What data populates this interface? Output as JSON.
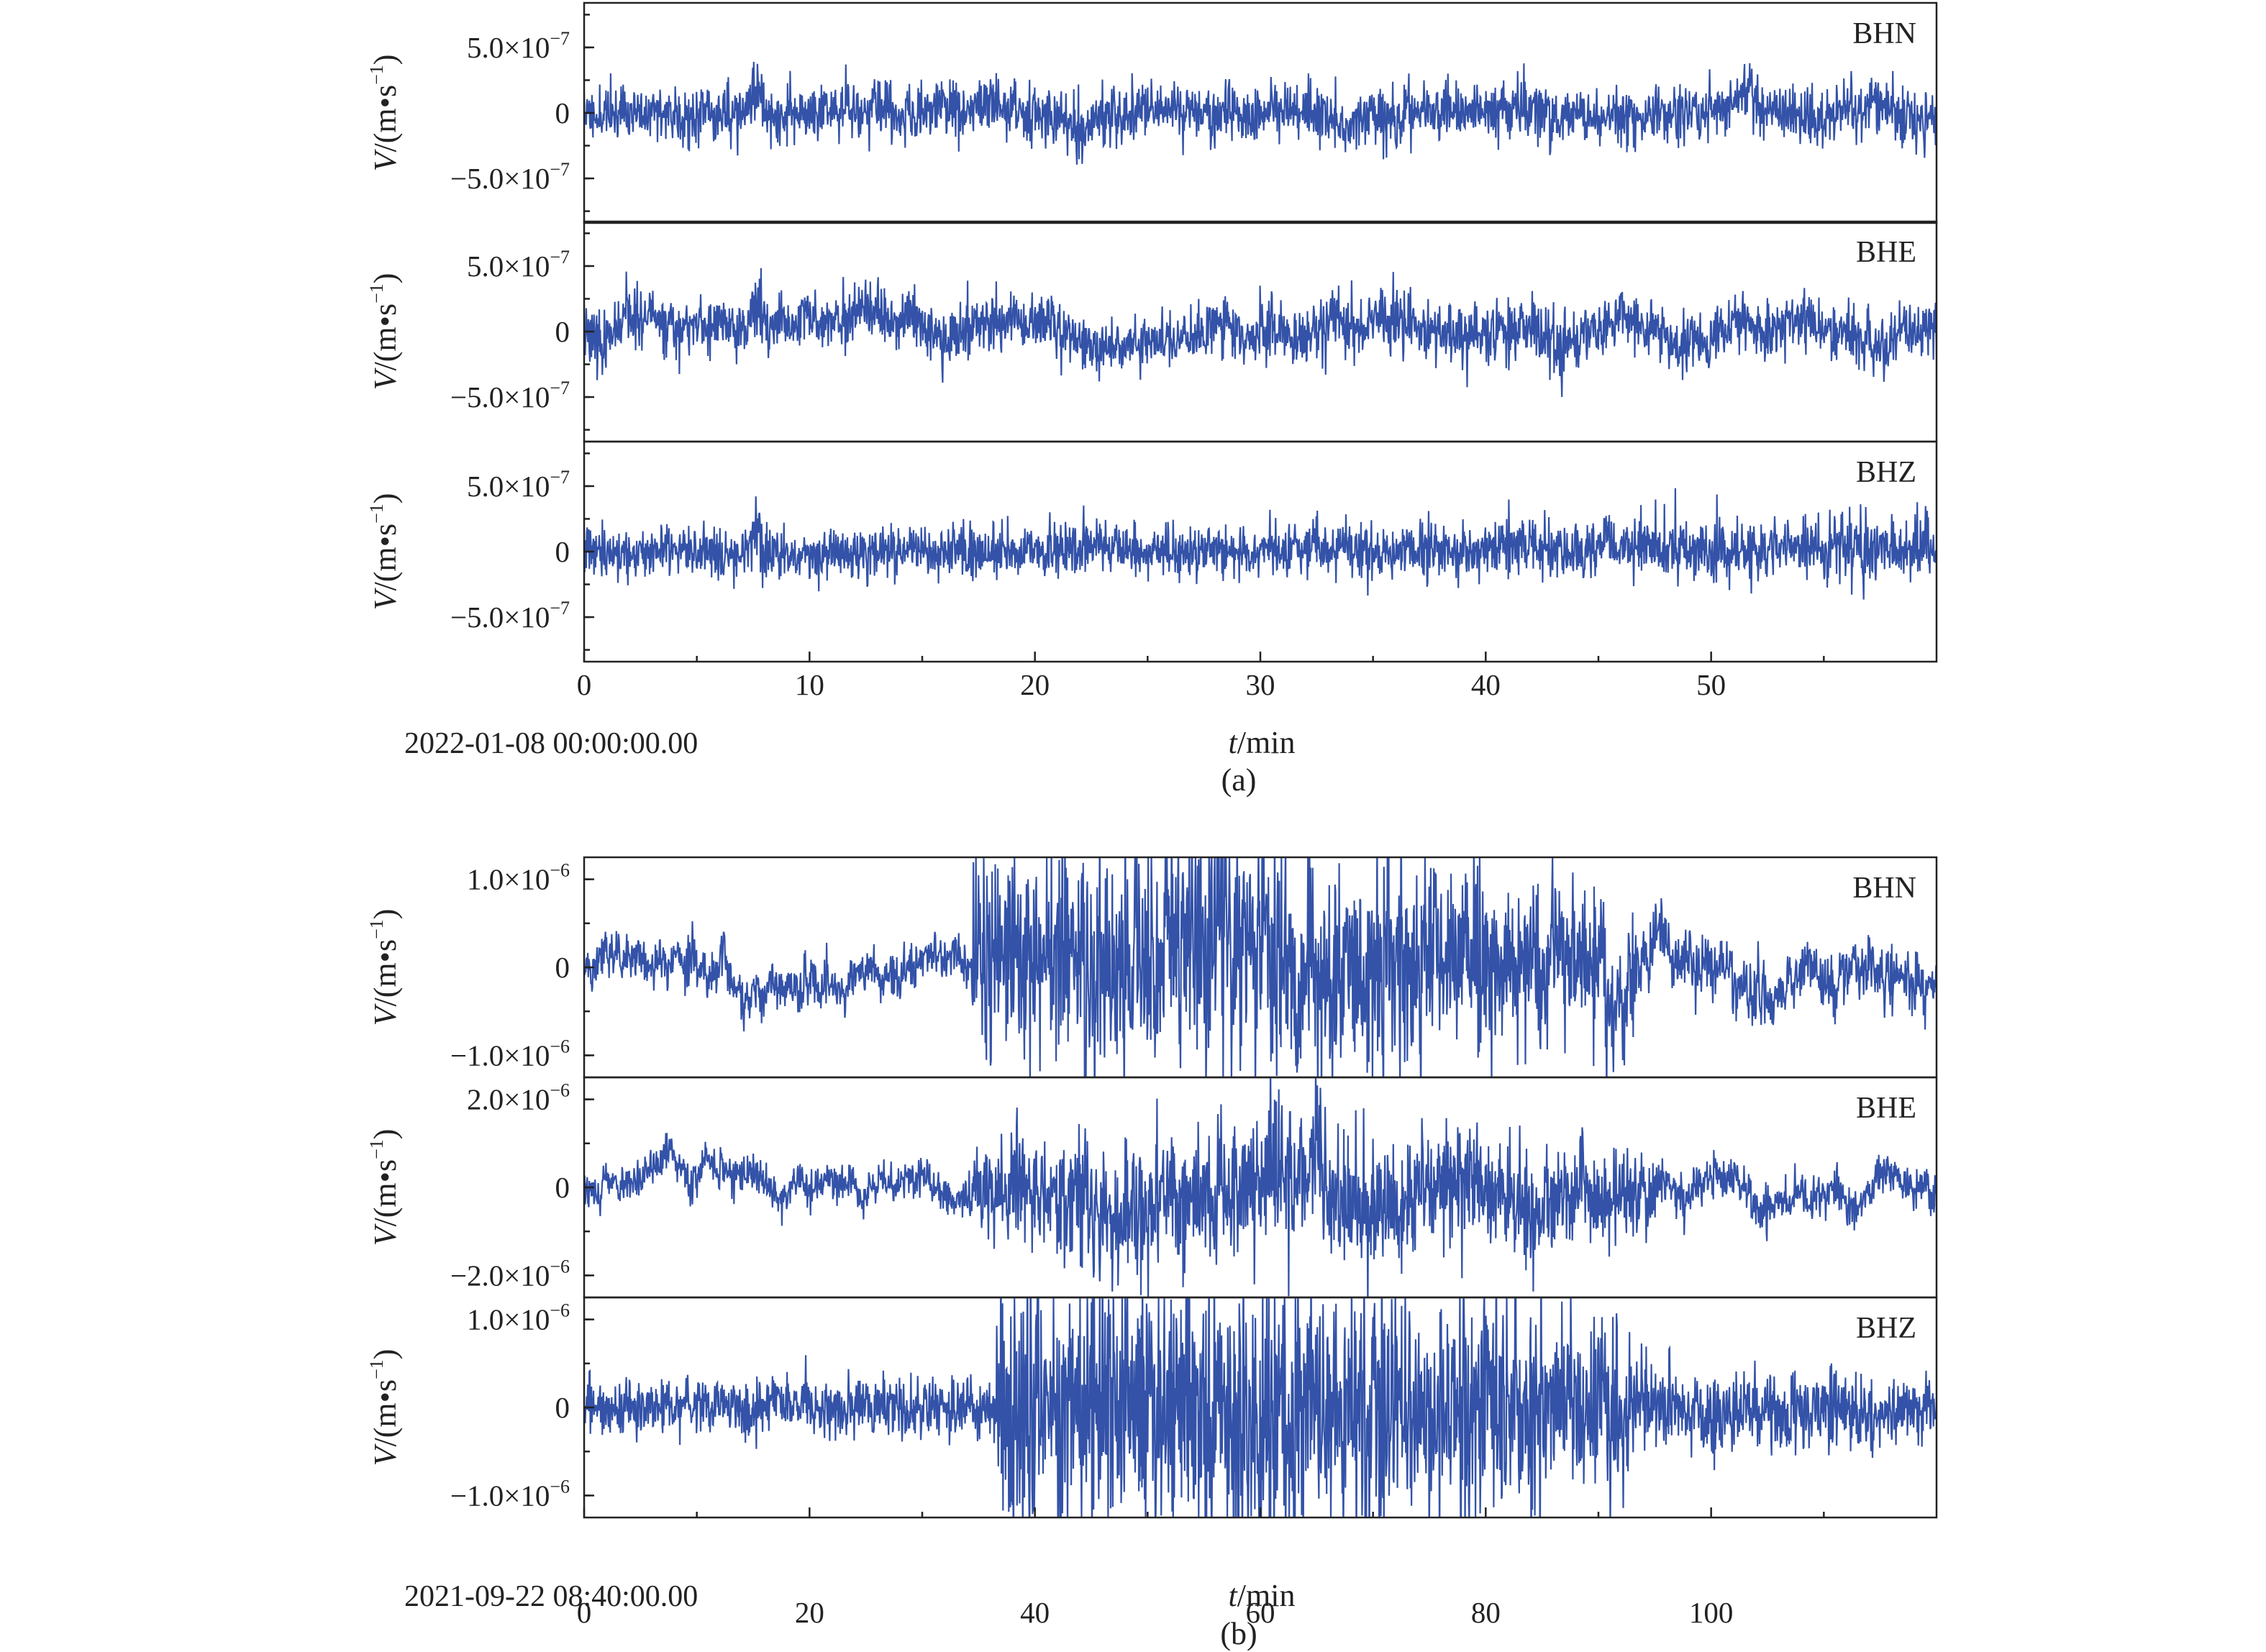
{
  "chart_data": [
    {
      "type": "line",
      "panel_label": "(a)",
      "start_time": "2022-01-08 00:00:00.00",
      "xlabel_var": "t",
      "xlabel_unit": "/min",
      "xlim": [
        0,
        60
      ],
      "xticks": [
        0,
        10,
        20,
        30,
        40,
        50
      ],
      "xtick_labels": [
        "0",
        "10",
        "20",
        "30",
        "40",
        "50"
      ],
      "ylabel_var": "V",
      "ylabel_unit": "/(m•s",
      "ylabel_exp": "−1",
      "ylabel_close": ")",
      "series_color": "#3352a8",
      "components": [
        {
          "name": "BHN",
          "ylim": [
            -8.4e-07,
            8.4e-07
          ],
          "yticks": [
            5e-07,
            0,
            -5e-07
          ],
          "ytick_labels": [
            {
              "mant": "5.0×10",
              "exp": "−7"
            },
            {
              "mant": "0",
              "exp": ""
            },
            {
              "mant": "−5.0×10",
              "exp": "−7"
            }
          ],
          "noise": {
            "base": 1.1e-07,
            "drift": 4e-08,
            "seed": 11
          },
          "envelope": [
            [
              0,
              1.0
            ],
            [
              60,
              1.0
            ]
          ],
          "events": [
            {
              "t": 7.7,
              "amp": 3.2e-07,
              "width": 0.3
            },
            {
              "t": 51.6,
              "amp": 2.6e-07,
              "width": 0.4
            },
            {
              "t": 22.1,
              "amp": -1.8e-07,
              "width": 0.5
            }
          ]
        },
        {
          "name": "BHE",
          "ylim": [
            -8.4e-07,
            8.4e-07
          ],
          "yticks": [
            5e-07,
            0,
            -5e-07
          ],
          "ytick_labels": [
            {
              "mant": "5.0×10",
              "exp": "−7"
            },
            {
              "mant": "0",
              "exp": ""
            },
            {
              "mant": "−5.0×10",
              "exp": "−7"
            }
          ],
          "noise": {
            "base": 1.1e-07,
            "drift": 6e-08,
            "seed": 23
          },
          "envelope": [
            [
              0,
              1.0
            ],
            [
              60,
              1.0
            ]
          ],
          "events": [
            {
              "t": 7.7,
              "amp": 3.8e-07,
              "width": 0.25
            },
            {
              "t": 33.3,
              "amp": 2.2e-07,
              "width": 0.4
            },
            {
              "t": 51.4,
              "amp": 2e-07,
              "width": 0.5
            },
            {
              "t": 43.4,
              "amp": -2e-07,
              "width": 0.6
            }
          ]
        },
        {
          "name": "BHZ",
          "ylim": [
            -8.4e-07,
            8.4e-07
          ],
          "yticks": [
            5e-07,
            0,
            -5e-07
          ],
          "ytick_labels": [
            {
              "mant": "5.0×10",
              "exp": "−7"
            },
            {
              "mant": "0",
              "exp": ""
            },
            {
              "mant": "−5.0×10",
              "exp": "−7"
            }
          ],
          "noise": {
            "base": 1e-07,
            "drift": 1.5e-08,
            "seed": 37
          },
          "envelope": [
            [
              0,
              1.0
            ],
            [
              38,
              1.0
            ],
            [
              40,
              1.15
            ],
            [
              60,
              1.2
            ]
          ],
          "events": [
            {
              "t": 7.7,
              "amp": 2.8e-07,
              "width": 0.2
            },
            {
              "t": 45.5,
              "amp": 2.5e-07,
              "width": 0.2
            }
          ]
        }
      ]
    },
    {
      "type": "line",
      "panel_label": "(b)",
      "start_time": "2021-09-22 08:40:00.00",
      "xlabel_var": "t",
      "xlabel_unit": "/min",
      "xlim": [
        0,
        120
      ],
      "xticks": [
        0,
        20,
        40,
        60,
        80,
        100
      ],
      "xtick_labels": [
        "0",
        "20",
        "40",
        "60",
        "80",
        "100"
      ],
      "ylabel_var": "V",
      "ylabel_unit": "/(m•s",
      "ylabel_exp": "−1",
      "ylabel_close": ")",
      "series_color": "#3352a8",
      "components": [
        {
          "name": "BHN",
          "ylim": [
            -1.25e-06,
            1.25e-06
          ],
          "yticks": [
            1e-06,
            0,
            -1e-06
          ],
          "ytick_labels": [
            {
              "mant": "1.0×10",
              "exp": "−6"
            },
            {
              "mant": "0",
              "exp": ""
            },
            {
              "mant": "−1.0×10",
              "exp": "−6"
            }
          ],
          "noise": {
            "base": 1.3e-07,
            "drift": 1.7e-07,
            "seed": 51
          },
          "envelope": [
            [
              0,
              1.0
            ],
            [
              34,
              1.0
            ],
            [
              35,
              4.5
            ],
            [
              60,
              5.5
            ],
            [
              70,
              4.8
            ],
            [
              92,
              3.2
            ],
            [
              95,
              1.3
            ],
            [
              120,
              1.2
            ]
          ],
          "events": [
            {
              "t": 9.5,
              "amp": 4e-07,
              "width": 0.4
            },
            {
              "t": 12.5,
              "amp": 3.5e-07,
              "width": 0.4
            },
            {
              "t": 95.5,
              "amp": 3e-07,
              "width": 0.6
            }
          ]
        },
        {
          "name": "BHE",
          "ylim": [
            -2.5e-06,
            2.5e-06
          ],
          "yticks": [
            2e-06,
            0,
            -2e-06
          ],
          "ytick_labels": [
            {
              "mant": "2.0×10",
              "exp": "−6"
            },
            {
              "mant": "0",
              "exp": ""
            },
            {
              "mant": "−2.0×10",
              "exp": "−6"
            }
          ],
          "noise": {
            "base": 2e-07,
            "drift": 3e-07,
            "seed": 67
          },
          "envelope": [
            [
              0,
              1.0
            ],
            [
              34,
              1.0
            ],
            [
              35,
              3.2
            ],
            [
              65,
              4.0
            ],
            [
              92,
              2.6
            ],
            [
              95,
              1.3
            ],
            [
              120,
              1.2
            ]
          ],
          "events": [
            {
              "t": 9.5,
              "amp": -9e-07,
              "width": 0.4
            },
            {
              "t": 65,
              "amp": 1.5e-06,
              "width": 0.6
            },
            {
              "t": 94.5,
              "amp": -1e-06,
              "width": 0.6
            }
          ]
        },
        {
          "name": "BHZ",
          "ylim": [
            -1.25e-06,
            1.25e-06
          ],
          "yticks": [
            1e-06,
            0,
            -1e-06
          ],
          "ytick_labels": [
            {
              "mant": "1.0×10",
              "exp": "−6"
            },
            {
              "mant": "0",
              "exp": ""
            },
            {
              "mant": "−1.0×10",
              "exp": "−6"
            }
          ],
          "noise": {
            "base": 1.6e-07,
            "drift": 5e-08,
            "seed": 83
          },
          "envelope": [
            [
              0,
              1.0
            ],
            [
              36,
              1.0
            ],
            [
              37,
              4.2
            ],
            [
              62,
              5.5
            ],
            [
              92,
              3.3
            ],
            [
              95,
              1.4
            ],
            [
              120,
              1.3
            ]
          ],
          "events": []
        }
      ]
    }
  ]
}
